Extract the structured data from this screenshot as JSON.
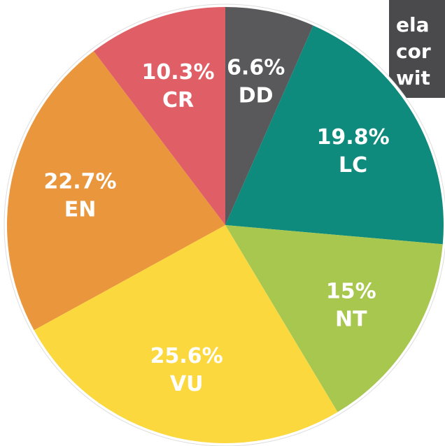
{
  "chart_data": {
    "type": "pie",
    "categories": [
      "DD",
      "LC",
      "NT",
      "VU",
      "EN",
      "CR"
    ],
    "values": [
      6.6,
      19.8,
      15,
      25.6,
      22.7,
      10.3
    ],
    "value_labels": [
      "6.6%",
      "19.8%",
      "15%",
      "25.6%",
      "22.7%",
      "10.3%"
    ],
    "colors": [
      "#59595b",
      "#0e8b7d",
      "#a8c74f",
      "#fcd83f",
      "#e9963d",
      "#e05f67"
    ],
    "corner_text": [
      "ela",
      "cor",
      "wit"
    ]
  }
}
